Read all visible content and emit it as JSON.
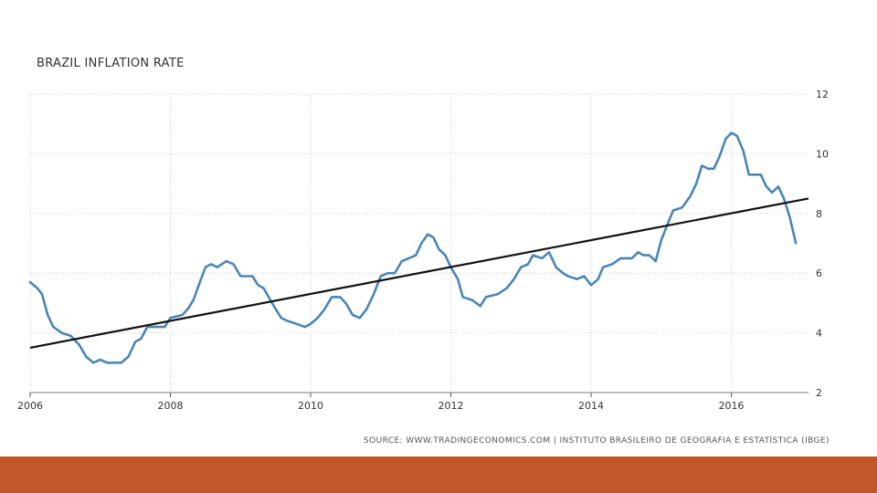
{
  "colors": {
    "series": "#4a86b5",
    "trendline": "#111111",
    "grid": "#c8c8c8",
    "bottom_band": "#c0582b"
  },
  "source_text": "SOURCE: WWW.TRADINGECONOMICS.COM | INSTITUTO BRASILEIRO DE GEOGRAFIA E ESTATÍSTICA (IBGE)",
  "chart_data": {
    "type": "line",
    "title": "BRAZIL INFLATION RATE",
    "xlabel": "",
    "ylabel": "",
    "xlim": [
      2006,
      2017.1
    ],
    "ylim": [
      2,
      12
    ],
    "x_ticks": [
      "2006",
      "2008",
      "2010",
      "2012",
      "2014",
      "2016"
    ],
    "y_ticks": [
      "2",
      "4",
      "6",
      "8",
      "10",
      "12"
    ],
    "y_axis_side": "right",
    "grid": true,
    "series": [
      {
        "type": "line",
        "points": [
          [
            2006.0,
            5.7
          ],
          [
            2006.1,
            5.5
          ],
          [
            2006.17,
            5.3
          ],
          [
            2006.25,
            4.6
          ],
          [
            2006.33,
            4.2
          ],
          [
            2006.45,
            4.0
          ],
          [
            2006.58,
            3.9
          ],
          [
            2006.7,
            3.6
          ],
          [
            2006.8,
            3.2
          ],
          [
            2006.9,
            3.0
          ],
          [
            2007.0,
            3.1
          ],
          [
            2007.1,
            3.0
          ],
          [
            2007.2,
            3.0
          ],
          [
            2007.3,
            3.0
          ],
          [
            2007.4,
            3.2
          ],
          [
            2007.5,
            3.7
          ],
          [
            2007.58,
            3.8
          ],
          [
            2007.67,
            4.2
          ],
          [
            2007.8,
            4.2
          ],
          [
            2007.92,
            4.2
          ],
          [
            2008.0,
            4.5
          ],
          [
            2008.17,
            4.6
          ],
          [
            2008.25,
            4.8
          ],
          [
            2008.33,
            5.1
          ],
          [
            2008.42,
            5.7
          ],
          [
            2008.5,
            6.2
          ],
          [
            2008.58,
            6.3
          ],
          [
            2008.67,
            6.2
          ],
          [
            2008.8,
            6.4
          ],
          [
            2008.9,
            6.3
          ],
          [
            2009.0,
            5.9
          ],
          [
            2009.17,
            5.9
          ],
          [
            2009.25,
            5.6
          ],
          [
            2009.33,
            5.5
          ],
          [
            2009.45,
            5.0
          ],
          [
            2009.58,
            4.5
          ],
          [
            2009.67,
            4.4
          ],
          [
            2009.8,
            4.3
          ],
          [
            2009.92,
            4.2
          ],
          [
            2010.0,
            4.3
          ],
          [
            2010.1,
            4.5
          ],
          [
            2010.2,
            4.8
          ],
          [
            2010.3,
            5.2
          ],
          [
            2010.42,
            5.2
          ],
          [
            2010.5,
            5.0
          ],
          [
            2010.6,
            4.6
          ],
          [
            2010.7,
            4.5
          ],
          [
            2010.8,
            4.8
          ],
          [
            2010.9,
            5.3
          ],
          [
            2011.0,
            5.9
          ],
          [
            2011.1,
            6.0
          ],
          [
            2011.2,
            6.0
          ],
          [
            2011.3,
            6.4
          ],
          [
            2011.4,
            6.5
          ],
          [
            2011.5,
            6.6
          ],
          [
            2011.58,
            7.0
          ],
          [
            2011.67,
            7.3
          ],
          [
            2011.75,
            7.2
          ],
          [
            2011.83,
            6.8
          ],
          [
            2011.92,
            6.6
          ],
          [
            2012.0,
            6.2
          ],
          [
            2012.1,
            5.8
          ],
          [
            2012.17,
            5.2
          ],
          [
            2012.3,
            5.1
          ],
          [
            2012.42,
            4.9
          ],
          [
            2012.5,
            5.2
          ],
          [
            2012.67,
            5.3
          ],
          [
            2012.8,
            5.5
          ],
          [
            2012.9,
            5.8
          ],
          [
            2013.0,
            6.2
          ],
          [
            2013.1,
            6.3
          ],
          [
            2013.17,
            6.6
          ],
          [
            2013.3,
            6.5
          ],
          [
            2013.4,
            6.7
          ],
          [
            2013.5,
            6.2
          ],
          [
            2013.6,
            6.0
          ],
          [
            2013.67,
            5.9
          ],
          [
            2013.8,
            5.8
          ],
          [
            2013.9,
            5.9
          ],
          [
            2014.0,
            5.6
          ],
          [
            2014.1,
            5.8
          ],
          [
            2014.17,
            6.2
          ],
          [
            2014.3,
            6.3
          ],
          [
            2014.42,
            6.5
          ],
          [
            2014.5,
            6.5
          ],
          [
            2014.58,
            6.5
          ],
          [
            2014.67,
            6.7
          ],
          [
            2014.75,
            6.6
          ],
          [
            2014.83,
            6.6
          ],
          [
            2014.92,
            6.4
          ],
          [
            2015.0,
            7.1
          ],
          [
            2015.1,
            7.7
          ],
          [
            2015.17,
            8.1
          ],
          [
            2015.3,
            8.2
          ],
          [
            2015.42,
            8.6
          ],
          [
            2015.5,
            9.0
          ],
          [
            2015.58,
            9.6
          ],
          [
            2015.67,
            9.5
          ],
          [
            2015.75,
            9.5
          ],
          [
            2015.83,
            9.9
          ],
          [
            2015.92,
            10.5
          ],
          [
            2016.0,
            10.7
          ],
          [
            2016.08,
            10.6
          ],
          [
            2016.17,
            10.1
          ],
          [
            2016.25,
            9.3
          ],
          [
            2016.33,
            9.3
          ],
          [
            2016.42,
            9.3
          ],
          [
            2016.5,
            8.9
          ],
          [
            2016.58,
            8.7
          ],
          [
            2016.67,
            8.9
          ],
          [
            2016.75,
            8.5
          ],
          [
            2016.83,
            7.9
          ],
          [
            2016.92,
            7.0
          ]
        ]
      },
      {
        "type": "trendline",
        "points": [
          [
            2006.0,
            3.5
          ],
          [
            2017.1,
            8.5
          ]
        ]
      }
    ]
  }
}
